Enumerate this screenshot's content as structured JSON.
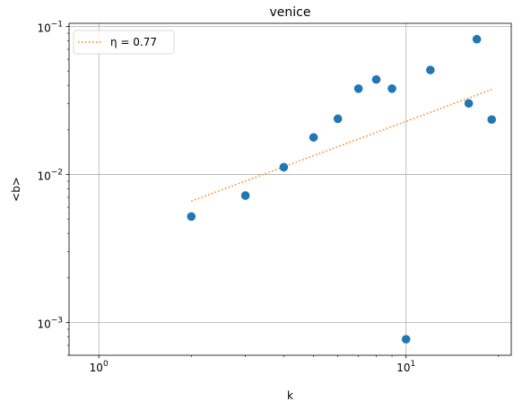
{
  "chart_data": {
    "type": "scatter",
    "title": "venice",
    "xlabel": "k",
    "ylabel": "<b>",
    "xscale": "log",
    "yscale": "log",
    "xlim": [
      0.8,
      22
    ],
    "ylim": [
      0.0006,
      0.105
    ],
    "grid": true,
    "legend_position": "top-left",
    "x_ticks": [
      {
        "value": 1,
        "base": "10",
        "exp": "0"
      },
      {
        "value": 10,
        "base": "10",
        "exp": "1"
      }
    ],
    "y_ticks": [
      {
        "value": 0.001,
        "base": "10",
        "exp": "−3"
      },
      {
        "value": 0.01,
        "base": "10",
        "exp": "−2"
      },
      {
        "value": 0.1,
        "base": "10",
        "exp": "−1"
      }
    ],
    "series": [
      {
        "kind": "scatter",
        "color": "#1f77b4",
        "points": [
          {
            "x": 2,
            "y": 0.0052
          },
          {
            "x": 3,
            "y": 0.0072
          },
          {
            "x": 4,
            "y": 0.0112
          },
          {
            "x": 5,
            "y": 0.0178
          },
          {
            "x": 6,
            "y": 0.0238
          },
          {
            "x": 7,
            "y": 0.038
          },
          {
            "x": 8,
            "y": 0.0438
          },
          {
            "x": 9,
            "y": 0.038
          },
          {
            "x": 10,
            "y": 0.00077
          },
          {
            "x": 12,
            "y": 0.0508
          },
          {
            "x": 16,
            "y": 0.0302
          },
          {
            "x": 17,
            "y": 0.082
          },
          {
            "x": 19,
            "y": 0.0235
          }
        ]
      },
      {
        "kind": "line",
        "name": "η = 0.77",
        "color": "#ff7f0e",
        "style": "dotted",
        "points": [
          {
            "x": 2,
            "y": 0.0066
          },
          {
            "x": 19,
            "y": 0.0375
          }
        ]
      }
    ]
  }
}
